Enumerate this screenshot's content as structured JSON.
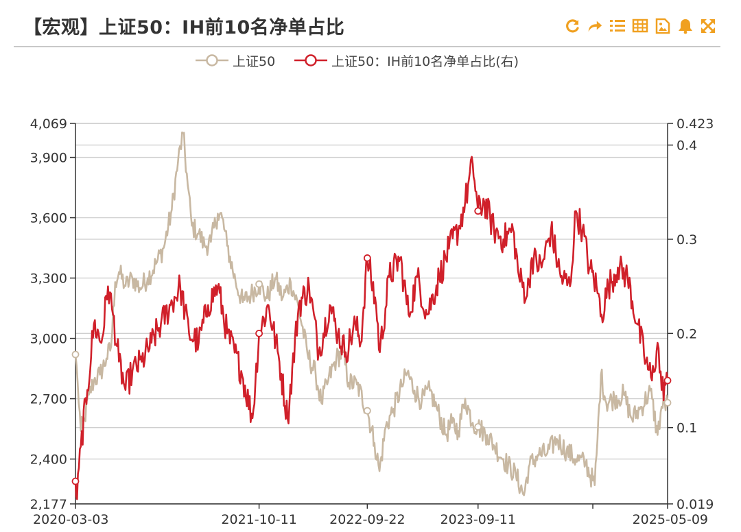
{
  "header": {
    "title": "【宏观】上证50：IH前10名净单占比",
    "tools": [
      "refresh-icon",
      "share-icon",
      "list-icon",
      "table-icon",
      "image-icon",
      "bell-icon",
      "fullscreen-icon"
    ],
    "accent_color": "#f0a020"
  },
  "chart_data": {
    "type": "line",
    "legend": [
      {
        "name": "上证50",
        "color": "#c8b8a2"
      },
      {
        "name": "上证50：IH前10名净单占比(右)",
        "color": "#d0202a"
      }
    ],
    "x_axis": {
      "start": "2020-03-03",
      "end": "2025-05-09",
      "tick_labels": [
        "2020-03-03",
        "2021-10-11",
        "2022-09-22",
        "2023-09-11",
        "2025-05-09"
      ]
    },
    "y_left": {
      "min": 2177,
      "max": 4069,
      "tick_labels": [
        "4,069",
        "3,900",
        "3,600",
        "3,300",
        "3,000",
        "2,700",
        "2,400",
        "2,177"
      ]
    },
    "y_right": {
      "min": 0.019,
      "max": 0.423,
      "tick_labels": [
        "0.423",
        "0.4",
        "0.3",
        "0.2",
        "0.1",
        "0.019"
      ]
    },
    "grid": true,
    "series": [
      {
        "name": "上证50",
        "axis": "left",
        "color": "#c8b8a2",
        "points": [
          [
            "2020-03-03",
            2920
          ],
          [
            "2020-03-10",
            2780
          ],
          [
            "2020-03-20",
            2540
          ],
          [
            "2020-04-01",
            2600
          ],
          [
            "2020-04-15",
            2720
          ],
          [
            "2020-05-01",
            2790
          ],
          [
            "2020-05-20",
            2820
          ],
          [
            "2020-06-10",
            2900
          ],
          [
            "2020-06-25",
            2960
          ],
          [
            "2020-07-08",
            3280
          ],
          [
            "2020-07-20",
            3330
          ],
          [
            "2020-08-10",
            3260
          ],
          [
            "2020-09-01",
            3300
          ],
          [
            "2020-09-25",
            3250
          ],
          [
            "2020-10-20",
            3300
          ],
          [
            "2020-11-15",
            3370
          ],
          [
            "2020-12-10",
            3450
          ],
          [
            "2021-01-05",
            3640
          ],
          [
            "2021-01-25",
            3880
          ],
          [
            "2021-02-10",
            4020
          ],
          [
            "2021-02-25",
            3760
          ],
          [
            "2021-03-10",
            3560
          ],
          [
            "2021-04-01",
            3520
          ],
          [
            "2021-04-20",
            3460
          ],
          [
            "2021-05-10",
            3480
          ],
          [
            "2021-06-01",
            3620
          ],
          [
            "2021-06-15",
            3600
          ],
          [
            "2021-07-01",
            3460
          ],
          [
            "2021-07-28",
            3280
          ],
          [
            "2021-08-20",
            3180
          ],
          [
            "2021-09-15",
            3220
          ],
          [
            "2021-10-11",
            3270
          ],
          [
            "2021-11-05",
            3200
          ],
          [
            "2021-12-01",
            3300
          ],
          [
            "2021-12-25",
            3200
          ],
          [
            "2022-01-20",
            3280
          ],
          [
            "2022-02-15",
            3150
          ],
          [
            "2022-03-15",
            2920
          ],
          [
            "2022-04-10",
            2820
          ],
          [
            "2022-04-28",
            2680
          ],
          [
            "2022-05-20",
            2790
          ],
          [
            "2022-06-15",
            2900
          ],
          [
            "2022-07-05",
            2930
          ],
          [
            "2022-07-25",
            2780
          ],
          [
            "2022-08-20",
            2770
          ],
          [
            "2022-09-22",
            2640
          ],
          [
            "2022-10-15",
            2480
          ],
          [
            "2022-10-31",
            2340
          ],
          [
            "2022-11-20",
            2560
          ],
          [
            "2022-12-15",
            2650
          ],
          [
            "2023-01-10",
            2760
          ],
          [
            "2023-01-28",
            2830
          ],
          [
            "2023-02-20",
            2740
          ],
          [
            "2023-03-15",
            2690
          ],
          [
            "2023-04-10",
            2740
          ],
          [
            "2023-05-05",
            2640
          ],
          [
            "2023-05-31",
            2520
          ],
          [
            "2023-06-20",
            2580
          ],
          [
            "2023-07-10",
            2540
          ],
          [
            "2023-08-01",
            2700
          ],
          [
            "2023-08-25",
            2580
          ],
          [
            "2023-09-11",
            2560
          ],
          [
            "2023-10-10",
            2520
          ],
          [
            "2023-10-31",
            2470
          ],
          [
            "2023-12-01",
            2400
          ],
          [
            "2024-01-10",
            2320
          ],
          [
            "2024-02-05",
            2220
          ],
          [
            "2024-02-20",
            2360
          ],
          [
            "2024-03-20",
            2420
          ],
          [
            "2024-04-20",
            2430
          ],
          [
            "2024-05-20",
            2500
          ],
          [
            "2024-06-20",
            2440
          ],
          [
            "2024-07-20",
            2400
          ],
          [
            "2024-08-20",
            2380
          ],
          [
            "2024-09-18",
            2270
          ],
          [
            "2024-09-24",
            2420
          ],
          [
            "2024-10-08",
            2820
          ],
          [
            "2024-10-25",
            2680
          ],
          [
            "2024-11-20",
            2700
          ],
          [
            "2024-12-20",
            2720
          ],
          [
            "2025-01-15",
            2600
          ],
          [
            "2025-02-15",
            2660
          ],
          [
            "2025-03-15",
            2740
          ],
          [
            "2025-04-07",
            2520
          ],
          [
            "2025-04-20",
            2660
          ],
          [
            "2025-05-09",
            2680
          ]
        ]
      },
      {
        "name": "上证50：IH前10名净单占比(右)",
        "axis": "right",
        "color": "#d0202a",
        "points": [
          [
            "2020-03-03",
            0.043
          ],
          [
            "2020-03-08",
            0.024
          ],
          [
            "2020-03-20",
            0.08
          ],
          [
            "2020-04-10",
            0.14
          ],
          [
            "2020-05-01",
            0.21
          ],
          [
            "2020-05-25",
            0.19
          ],
          [
            "2020-06-15",
            0.25
          ],
          [
            "2020-07-01",
            0.22
          ],
          [
            "2020-07-20",
            0.17
          ],
          [
            "2020-08-10",
            0.14
          ],
          [
            "2020-09-01",
            0.16
          ],
          [
            "2020-10-01",
            0.17
          ],
          [
            "2020-11-01",
            0.19
          ],
          [
            "2020-12-01",
            0.21
          ],
          [
            "2021-01-01",
            0.23
          ],
          [
            "2021-02-01",
            0.25
          ],
          [
            "2021-03-01",
            0.2
          ],
          [
            "2021-04-01",
            0.19
          ],
          [
            "2021-05-01",
            0.23
          ],
          [
            "2021-06-01",
            0.25
          ],
          [
            "2021-07-01",
            0.2
          ],
          [
            "2021-08-15",
            0.16
          ],
          [
            "2021-09-20",
            0.11
          ],
          [
            "2021-10-11",
            0.2
          ],
          [
            "2021-11-10",
            0.23
          ],
          [
            "2021-12-15",
            0.17
          ],
          [
            "2022-01-10",
            0.11
          ],
          [
            "2022-02-15",
            0.23
          ],
          [
            "2022-03-20",
            0.25
          ],
          [
            "2022-04-20",
            0.18
          ],
          [
            "2022-05-25",
            0.23
          ],
          [
            "2022-06-20",
            0.2
          ],
          [
            "2022-07-15",
            0.18
          ],
          [
            "2022-08-15",
            0.21
          ],
          [
            "2022-09-01",
            0.19
          ],
          [
            "2022-09-22",
            0.28
          ],
          [
            "2022-10-20",
            0.23
          ],
          [
            "2022-11-01",
            0.18
          ],
          [
            "2022-12-01",
            0.26
          ],
          [
            "2023-01-05",
            0.28
          ],
          [
            "2023-02-01",
            0.22
          ],
          [
            "2023-03-01",
            0.26
          ],
          [
            "2023-04-01",
            0.22
          ],
          [
            "2023-05-10",
            0.26
          ],
          [
            "2023-06-10",
            0.29
          ],
          [
            "2023-07-10",
            0.31
          ],
          [
            "2023-08-01",
            0.34
          ],
          [
            "2023-08-25",
            0.38
          ],
          [
            "2023-09-11",
            0.33
          ],
          [
            "2023-10-01",
            0.34
          ],
          [
            "2023-11-01",
            0.31
          ],
          [
            "2023-12-01",
            0.3
          ],
          [
            "2024-01-01",
            0.31
          ],
          [
            "2024-01-20",
            0.26
          ],
          [
            "2024-02-15",
            0.24
          ],
          [
            "2024-03-01",
            0.28
          ],
          [
            "2024-04-01",
            0.27
          ],
          [
            "2024-05-01",
            0.31
          ],
          [
            "2024-06-01",
            0.26
          ],
          [
            "2024-07-01",
            0.25
          ],
          [
            "2024-07-20",
            0.33
          ],
          [
            "2024-08-10",
            0.31
          ],
          [
            "2024-09-01",
            0.27
          ],
          [
            "2024-09-24",
            0.25
          ],
          [
            "2024-10-10",
            0.22
          ],
          [
            "2024-11-01",
            0.25
          ],
          [
            "2024-12-01",
            0.27
          ],
          [
            "2025-01-01",
            0.26
          ],
          [
            "2025-02-01",
            0.21
          ],
          [
            "2025-03-01",
            0.17
          ],
          [
            "2025-03-20",
            0.15
          ],
          [
            "2025-04-07",
            0.19
          ],
          [
            "2025-04-20",
            0.14
          ],
          [
            "2025-05-09",
            0.15
          ]
        ]
      }
    ]
  }
}
